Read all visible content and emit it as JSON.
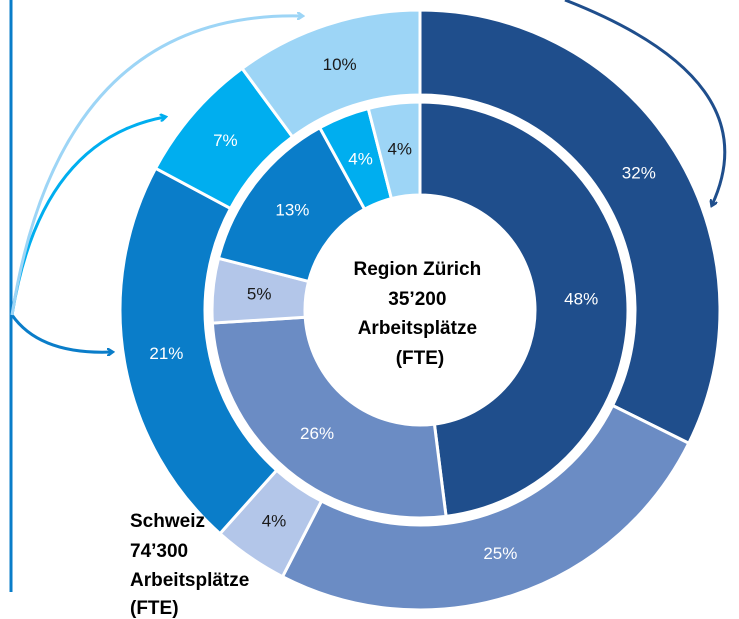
{
  "chart_data": {
    "type": "pie",
    "rings": [
      {
        "label": [
          "Region Zürich",
          "35’200",
          "Arbeitsplätze",
          "(FTE)"
        ],
        "values": [
          48,
          26,
          5,
          13,
          4,
          4
        ],
        "value_labels": [
          "48%",
          "26%",
          "5%",
          "13%",
          "4%",
          "4%"
        ],
        "colors": [
          "#1f4e8c",
          "#6b8cc4",
          "#b3c6e9",
          "#0a7dc9",
          "#00aeef",
          "#9dd5f6"
        ]
      },
      {
        "label": [
          "Schweiz",
          "74’300",
          "Arbeitsplätze",
          "(FTE)"
        ],
        "values": [
          32,
          25,
          4,
          21,
          7,
          10
        ],
        "value_labels": [
          "32%",
          "25%",
          "4%",
          "21%",
          "7%",
          "10%"
        ],
        "colors": [
          "#1f4e8c",
          "#6b8cc4",
          "#b3c6e9",
          "#0a7dc9",
          "#00aeef",
          "#9dd5f6"
        ]
      }
    ]
  }
}
